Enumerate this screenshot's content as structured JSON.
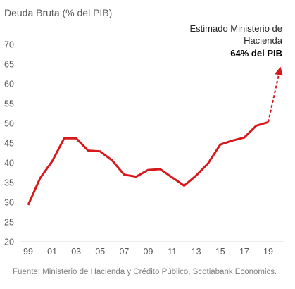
{
  "chart_data": {
    "type": "line",
    "title": "Deuda Bruta (%  del PIB)",
    "xlabel": "",
    "ylabel": "",
    "ylim": [
      20,
      70
    ],
    "yticks": [
      20,
      25,
      30,
      35,
      40,
      45,
      50,
      55,
      60,
      65,
      70
    ],
    "xticks": [
      "99",
      "01",
      "03",
      "05",
      "07",
      "09",
      "11",
      "13",
      "15",
      "17",
      "19"
    ],
    "grid": false,
    "line_color": "#d7191c",
    "series": [
      {
        "x": [
          1999,
          2000,
          2001,
          2002,
          2003,
          2004,
          2005,
          2006,
          2007,
          2008,
          2009,
          2010,
          2011,
          2012,
          2013,
          2014,
          2015,
          2016,
          2017,
          2018,
          2019
        ],
        "values": [
          29.3,
          36.1,
          40.4,
          46.2,
          46.2,
          43.1,
          42.9,
          40.6,
          37.0,
          36.5,
          38.2,
          38.4,
          36.3,
          34.2,
          36.8,
          39.9,
          44.6,
          45.6,
          46.4,
          49.4,
          50.3
        ],
        "style": "solid"
      },
      {
        "x": [
          2019,
          2020
        ],
        "values": [
          50.3,
          64.0
        ],
        "style": "dashed-arrow"
      }
    ],
    "annotation": {
      "line1": "Estimado Ministerio de",
      "line2": "Hacienda",
      "value_label": "64% del PIB"
    },
    "source": "Fuente: Ministerio de Hacienda y Crédito Público, Scotiabank Economics."
  }
}
